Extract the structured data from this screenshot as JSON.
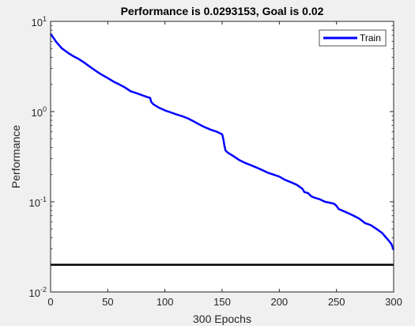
{
  "chart_data": {
    "type": "line",
    "title": "Performance is 0.0293153, Goal is 0.02",
    "xlabel": "300 Epochs",
    "ylabel": "Performance",
    "yscale": "log",
    "xlim": [
      0,
      300
    ],
    "ylim": [
      0.01,
      10
    ],
    "x_ticks": [
      0,
      50,
      100,
      150,
      200,
      250,
      300
    ],
    "x_tick_labels": [
      "0",
      "50",
      "100",
      "150",
      "200",
      "250",
      "300"
    ],
    "y_ticks": [
      0.01,
      0.1,
      1,
      10
    ],
    "y_tick_labels": [
      {
        "base": "10",
        "exp": "-2"
      },
      {
        "base": "10",
        "exp": "-1"
      },
      {
        "base": "10",
        "exp": "0"
      },
      {
        "base": "10",
        "exp": "1"
      }
    ],
    "grid": false,
    "legend_position": "top-right",
    "series": [
      {
        "name": "Train",
        "color": "#0000ff",
        "x": [
          0,
          2,
          5,
          10,
          15,
          20,
          25,
          30,
          35,
          40,
          45,
          50,
          55,
          60,
          65,
          70,
          75,
          80,
          85,
          87,
          88,
          90,
          95,
          100,
          105,
          110,
          115,
          120,
          125,
          130,
          135,
          140,
          145,
          150,
          151,
          152,
          153,
          155,
          160,
          165,
          170,
          175,
          180,
          185,
          190,
          195,
          200,
          205,
          210,
          215,
          220,
          222,
          225,
          228,
          230,
          235,
          240,
          245,
          248,
          250,
          252,
          255,
          260,
          265,
          270,
          275,
          280,
          285,
          290,
          295,
          298,
          300
        ],
        "values": [
          7.3,
          6.7,
          5.9,
          5.0,
          4.5,
          4.1,
          3.8,
          3.45,
          3.1,
          2.8,
          2.55,
          2.35,
          2.15,
          2.0,
          1.85,
          1.68,
          1.6,
          1.52,
          1.44,
          1.42,
          1.28,
          1.2,
          1.1,
          1.03,
          0.98,
          0.93,
          0.89,
          0.84,
          0.78,
          0.72,
          0.67,
          0.63,
          0.6,
          0.56,
          0.5,
          0.42,
          0.37,
          0.35,
          0.32,
          0.29,
          0.27,
          0.255,
          0.24,
          0.225,
          0.21,
          0.2,
          0.19,
          0.175,
          0.165,
          0.155,
          0.14,
          0.128,
          0.125,
          0.115,
          0.112,
          0.107,
          0.1,
          0.097,
          0.095,
          0.09,
          0.083,
          0.08,
          0.075,
          0.07,
          0.065,
          0.058,
          0.055,
          0.05,
          0.045,
          0.038,
          0.034,
          0.0293
        ]
      }
    ],
    "goal": {
      "value": 0.02,
      "color": "#000000"
    }
  }
}
